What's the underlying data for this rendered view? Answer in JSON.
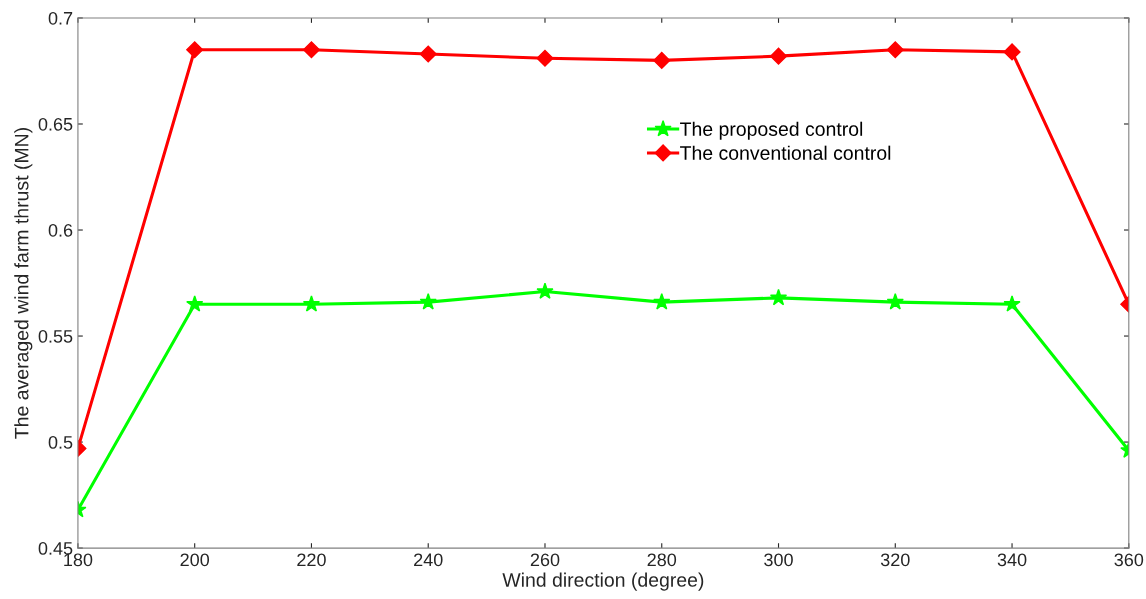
{
  "chart_data": {
    "type": "line",
    "xlabel": "Wind direction (degree)",
    "ylabel": "The averaged wind farm thrust (MN)",
    "x": [
      180,
      200,
      220,
      240,
      260,
      280,
      300,
      320,
      340,
      360
    ],
    "series": [
      {
        "name": "The proposed control",
        "color": "#00ff00",
        "marker": "star",
        "values": [
          0.468,
          0.565,
          0.565,
          0.566,
          0.571,
          0.566,
          0.568,
          0.566,
          0.565,
          0.496
        ]
      },
      {
        "name": "The conventional control",
        "color": "#ff0000",
        "marker": "diamond",
        "values": [
          0.497,
          0.685,
          0.685,
          0.683,
          0.681,
          0.68,
          0.682,
          0.685,
          0.684,
          0.565
        ]
      }
    ],
    "xlim": [
      180,
      360
    ],
    "xticks": [
      180,
      200,
      220,
      240,
      260,
      280,
      300,
      320,
      340,
      360
    ],
    "ylim": [
      0.45,
      0.7
    ],
    "yticks": [
      0.45,
      0.5,
      0.55,
      0.6,
      0.65,
      0.7
    ],
    "grid": false,
    "legend": "top right",
    "line_style": "solid"
  }
}
